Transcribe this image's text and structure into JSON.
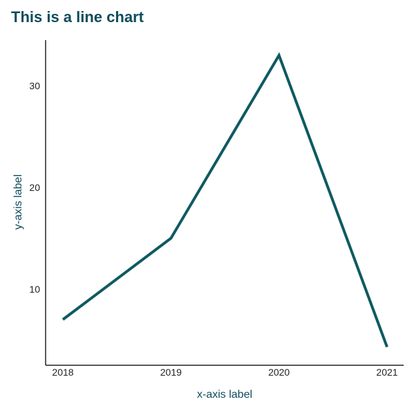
{
  "chart_data": {
    "type": "line",
    "title": "This is a line chart",
    "xlabel": "x-axis label",
    "ylabel": "y-axis label",
    "categories": [
      "2018",
      "2019",
      "2020",
      "2021"
    ],
    "series": [
      {
        "values": [
          7,
          15,
          33,
          4.3
        ]
      }
    ],
    "yticks": [
      10,
      20,
      30
    ],
    "ylim": [
      2.5,
      34.5
    ],
    "grid": false,
    "line_color": "#0f5a61",
    "axis_color": "#222222"
  }
}
